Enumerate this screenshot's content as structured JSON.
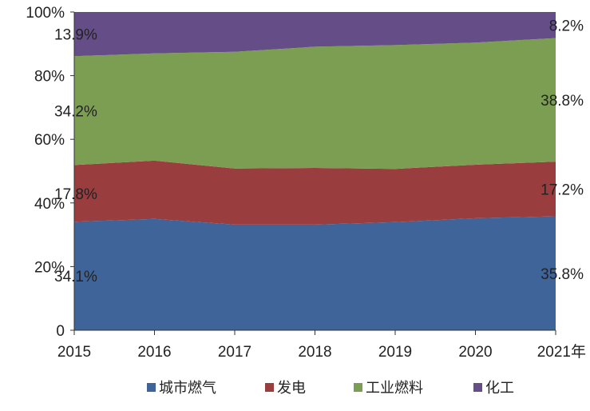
{
  "chart_data": {
    "type": "area",
    "stacked": true,
    "percent": true,
    "categories": [
      "2015",
      "2016",
      "2017",
      "2018",
      "2019",
      "2020",
      "2021年"
    ],
    "ylim": [
      0,
      100
    ],
    "yticks": [
      "0",
      "20%",
      "40%",
      "60%",
      "80%",
      "100%"
    ],
    "grid": false,
    "legend_position": "bottom",
    "series": [
      {
        "name": "城市燃气",
        "color": "#3F6499",
        "values": [
          34.1,
          35.0,
          33.2,
          33.2,
          34.0,
          35.2,
          35.8
        ]
      },
      {
        "name": "发电",
        "color": "#993D3F",
        "values": [
          17.8,
          18.3,
          17.6,
          17.8,
          16.7,
          16.8,
          17.2
        ]
      },
      {
        "name": "工业燃料",
        "color": "#7B9E53",
        "values": [
          34.2,
          33.7,
          36.7,
          38.1,
          38.9,
          38.4,
          38.8
        ]
      },
      {
        "name": "化工",
        "color": "#654D88",
        "values": [
          13.9,
          13.0,
          12.5,
          10.9,
          10.4,
          9.6,
          8.2
        ]
      }
    ],
    "data_labels": {
      "first": {
        "城市燃气": "34.1%",
        "发电": "17.8%",
        "工业燃料": "34.2%",
        "化工": "13.9%"
      },
      "last": {
        "城市燃气": "35.8%",
        "发电": "17.2%",
        "工业燃料": "38.8%",
        "化工": "8.2%"
      }
    }
  }
}
